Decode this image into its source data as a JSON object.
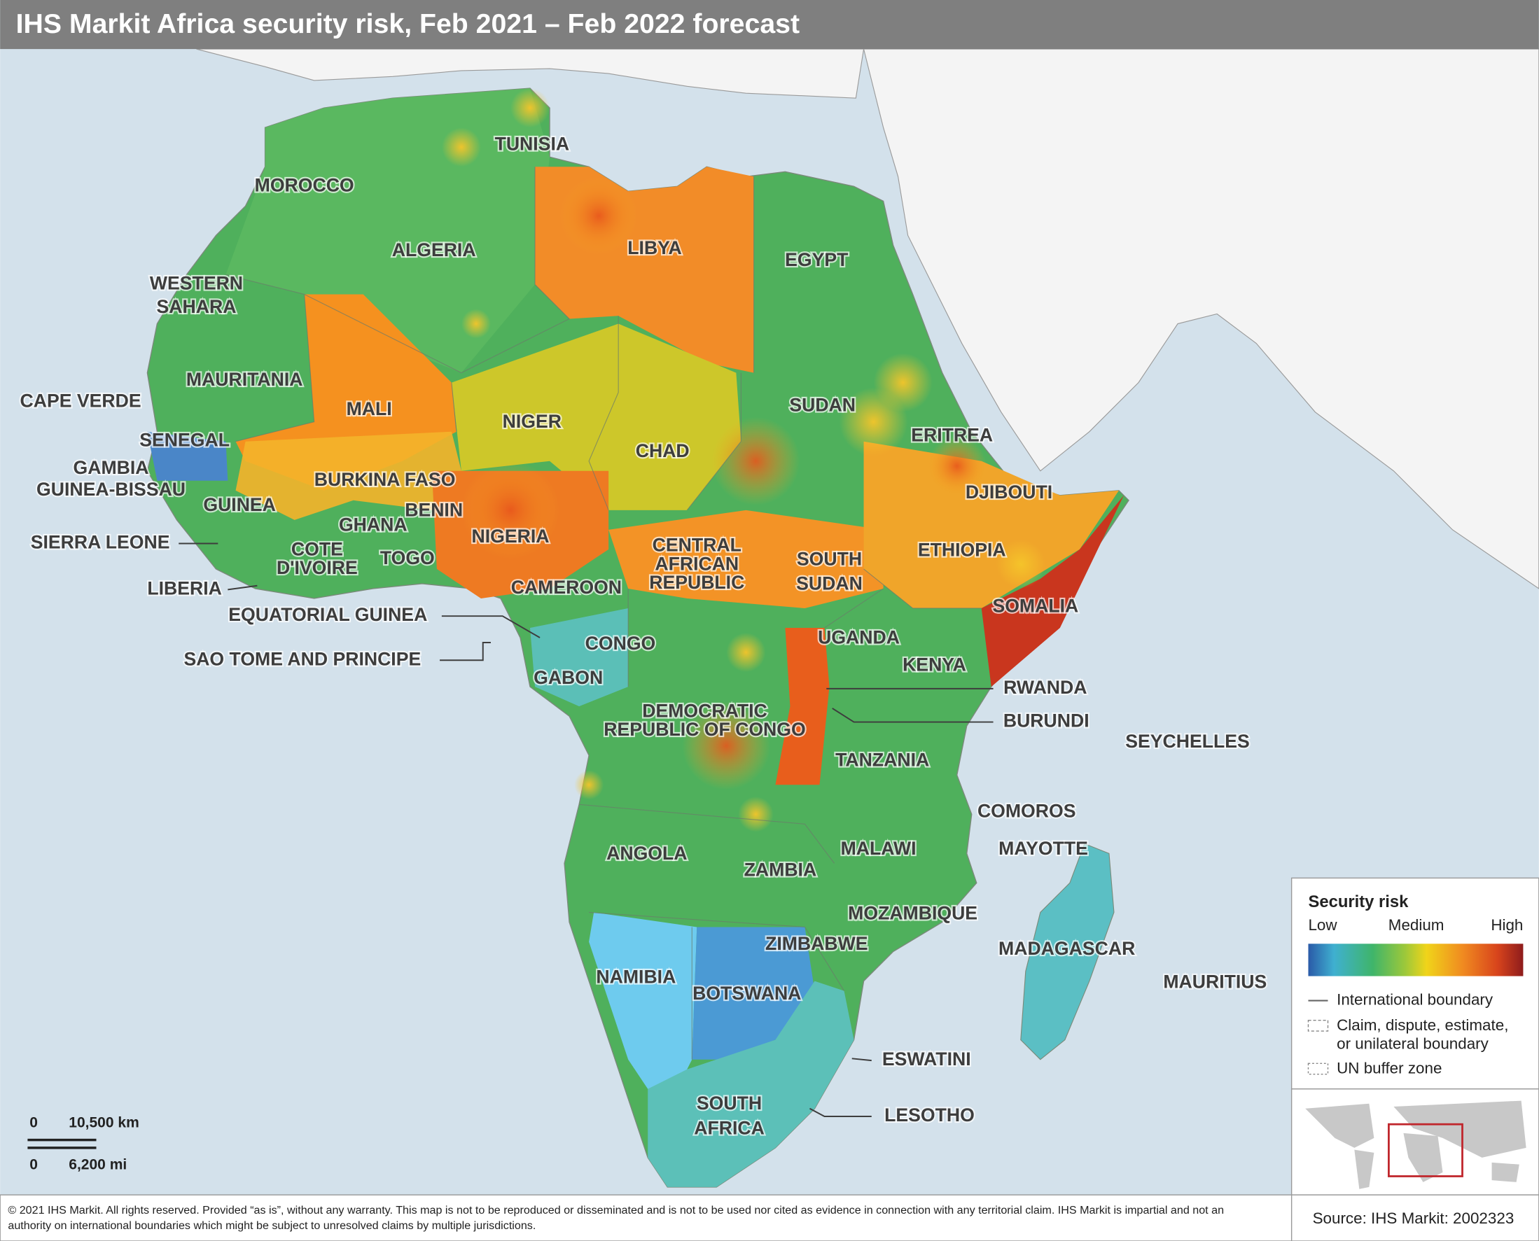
{
  "header": {
    "title": "IHS Markit Africa security risk, Feb 2021 – Feb 2022 forecast"
  },
  "countries": [
    [
      "TUNISIA"
    ],
    [
      "MOROCCO"
    ],
    [
      "ALGERIA"
    ],
    [
      "WESTERN",
      "SAHARA"
    ],
    [
      "LIBYA"
    ],
    [
      "EGYPT"
    ],
    [
      "MAURITANIA"
    ],
    [
      "MALI"
    ],
    [
      "CAPE VERDE"
    ],
    [
      "NIGER"
    ],
    [
      "SENEGAL"
    ],
    [
      "CHAD"
    ],
    [
      "SUDAN"
    ],
    [
      "ERITREA"
    ],
    [
      "GAMBIA"
    ],
    [
      "GUINEA-BISSAU"
    ],
    [
      "BURKINA FASO"
    ],
    [
      "DJIBOUTI"
    ],
    [
      "GUINEA"
    ],
    [
      "BENIN"
    ],
    [
      "GHANA"
    ],
    [
      "NIGERIA"
    ],
    [
      "CENTRAL",
      "AFRICAN",
      "REPUBLIC"
    ],
    [
      "SIERRA LEONE"
    ],
    [
      "COTE",
      "D'IVOIRE"
    ],
    [
      "TOGO"
    ],
    [
      "SOUTH",
      "SUDAN"
    ],
    [
      "ETHIOPIA"
    ],
    [
      "LIBERIA"
    ],
    [
      "CAMEROON"
    ],
    [
      "SOMALIA"
    ],
    [
      "EQUATORIAL GUINEA"
    ],
    [
      "UGANDA"
    ],
    [
      "CONGO"
    ],
    [
      "KENYA"
    ],
    [
      "SAO TOME AND PRINCIPE"
    ],
    [
      "GABON"
    ],
    [
      "RWANDA"
    ],
    [
      "DEMOCRATIC",
      "REPUBLIC OF CONGO"
    ],
    [
      "BURUNDI"
    ],
    [
      "SEYCHELLES"
    ],
    [
      "TANZANIA"
    ],
    [
      "COMOROS"
    ],
    [
      "MALAWI"
    ],
    [
      "MAYOTTE"
    ],
    [
      "ANGOLA"
    ],
    [
      "ZAMBIA"
    ],
    [
      "MOZAMBIQUE"
    ],
    [
      "ZIMBABWE"
    ],
    [
      "MADAGASCAR"
    ],
    [
      "NAMIBIA"
    ],
    [
      "MAURITIUS"
    ],
    [
      "BOTSWANA"
    ],
    [
      "ESWATINI"
    ],
    [
      "SOUTH",
      "AFRICA"
    ],
    [
      "LESOTHO"
    ]
  ],
  "legend": {
    "title": "Security risk",
    "scale": [
      "Low",
      "Medium",
      "High"
    ],
    "items": [
      [
        "International boundary"
      ],
      [
        "Claim, dispute, estimate,",
        "or unilateral boundary"
      ],
      [
        "UN buffer zone"
      ]
    ]
  },
  "scale_bar": {
    "km": [
      "0",
      "10,500  km"
    ],
    "mi": [
      "0",
      "6,200 mi"
    ]
  },
  "footer": {
    "copyright": [
      "© 2021 IHS Markit. All rights reserved. Provided “as is”, without any warranty. This map is not to be reproduced or disseminated and is not to be used nor cited as evidence in connection with any territorial claim. IHS Markit is impartial and not an",
      "authority on international boundaries which might be subject to unresolved claims by multiple jurisdictions."
    ],
    "source": "Source: IHS Markit: 2002323"
  }
}
